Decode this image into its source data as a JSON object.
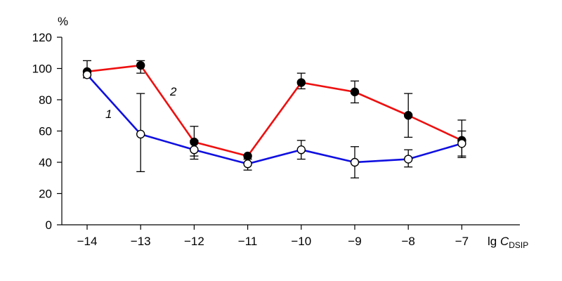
{
  "chart_data": {
    "type": "line",
    "title": "",
    "ylabel": "%",
    "xlabel_main": "lg ",
    "xlabel_symbol": "C",
    "xlabel_subscript": "DSIP",
    "x": [
      -14,
      -13,
      -12,
      -11,
      -10,
      -9,
      -8,
      -7
    ],
    "x_tick_labels": [
      "−14",
      "−13",
      "−12",
      "−11",
      "−10",
      "−9",
      "−8",
      "−7"
    ],
    "xlim": [
      -14.4,
      -5.6
    ],
    "ylim": [
      0,
      120
    ],
    "y_ticks": [
      0,
      20,
      40,
      60,
      80,
      100,
      120
    ],
    "y_tick_labels": [
      "0",
      "20",
      "40",
      "60",
      "80",
      "100",
      "120"
    ],
    "grid": false,
    "series": [
      {
        "name": "1",
        "color": "#1010e0",
        "marker": "open-circle",
        "values": [
          96,
          58,
          48,
          39,
          48,
          40,
          42,
          52
        ],
        "err_low": [
          96,
          34,
          42,
          35,
          42,
          30,
          37,
          44
        ],
        "err_high": [
          96,
          84,
          54,
          42,
          54,
          50,
          48,
          60
        ]
      },
      {
        "name": "2",
        "color": "#ee1010",
        "marker": "filled-circle",
        "values": [
          98,
          102,
          53,
          44,
          91,
          85,
          70,
          54
        ],
        "err_low": [
          94,
          97,
          44,
          44,
          87,
          78,
          56,
          43
        ],
        "err_high": [
          105,
          105,
          63,
          44,
          97,
          92,
          84,
          67
        ]
      }
    ]
  }
}
